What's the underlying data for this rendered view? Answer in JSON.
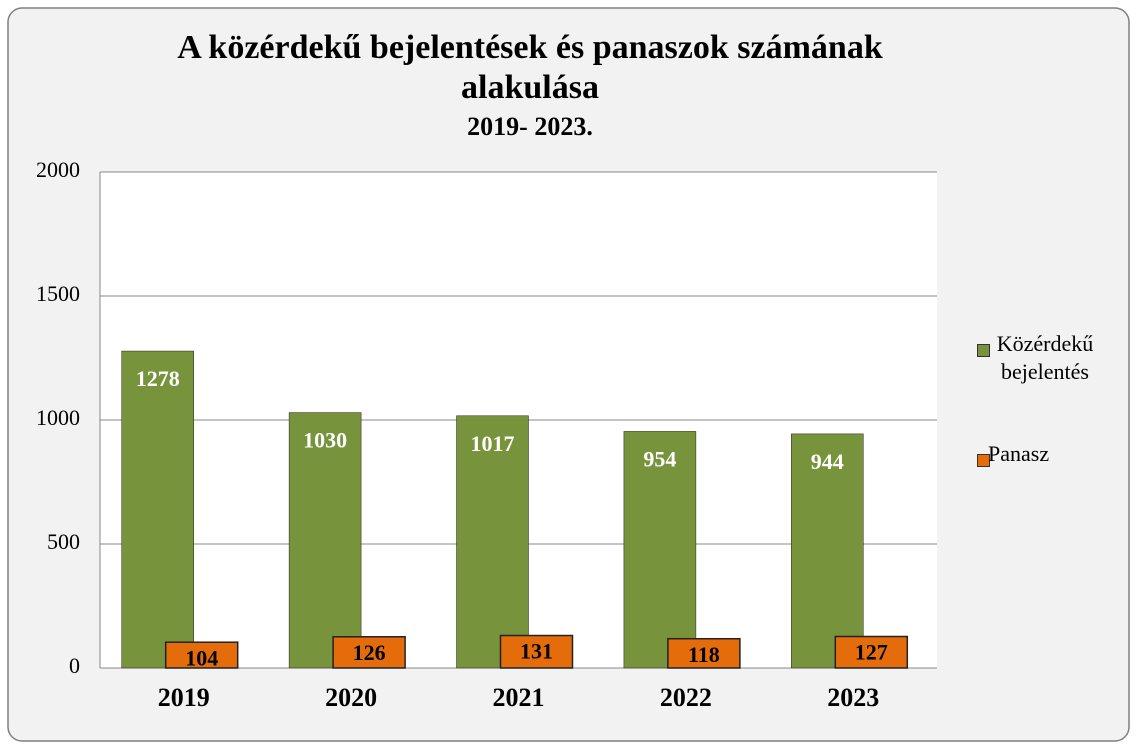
{
  "chart_data": {
    "type": "bar",
    "title": "A közérdekű bejelentések és panaszok számának alakulása",
    "subtitle": "2019- 2023.",
    "categories": [
      "2019",
      "2020",
      "2021",
      "2022",
      "2023"
    ],
    "series": [
      {
        "name": "Közérdekű bejelentés",
        "color": "#77933c",
        "values": [
          1278,
          1030,
          1017,
          954,
          944
        ]
      },
      {
        "name": "Panasz",
        "color": "#e46c0a",
        "values": [
          104,
          126,
          131,
          118,
          127
        ]
      }
    ],
    "ylim": [
      0,
      2000
    ],
    "yticks": [
      0,
      500,
      1000,
      1500,
      2000
    ],
    "grid": true,
    "legend": "right"
  }
}
